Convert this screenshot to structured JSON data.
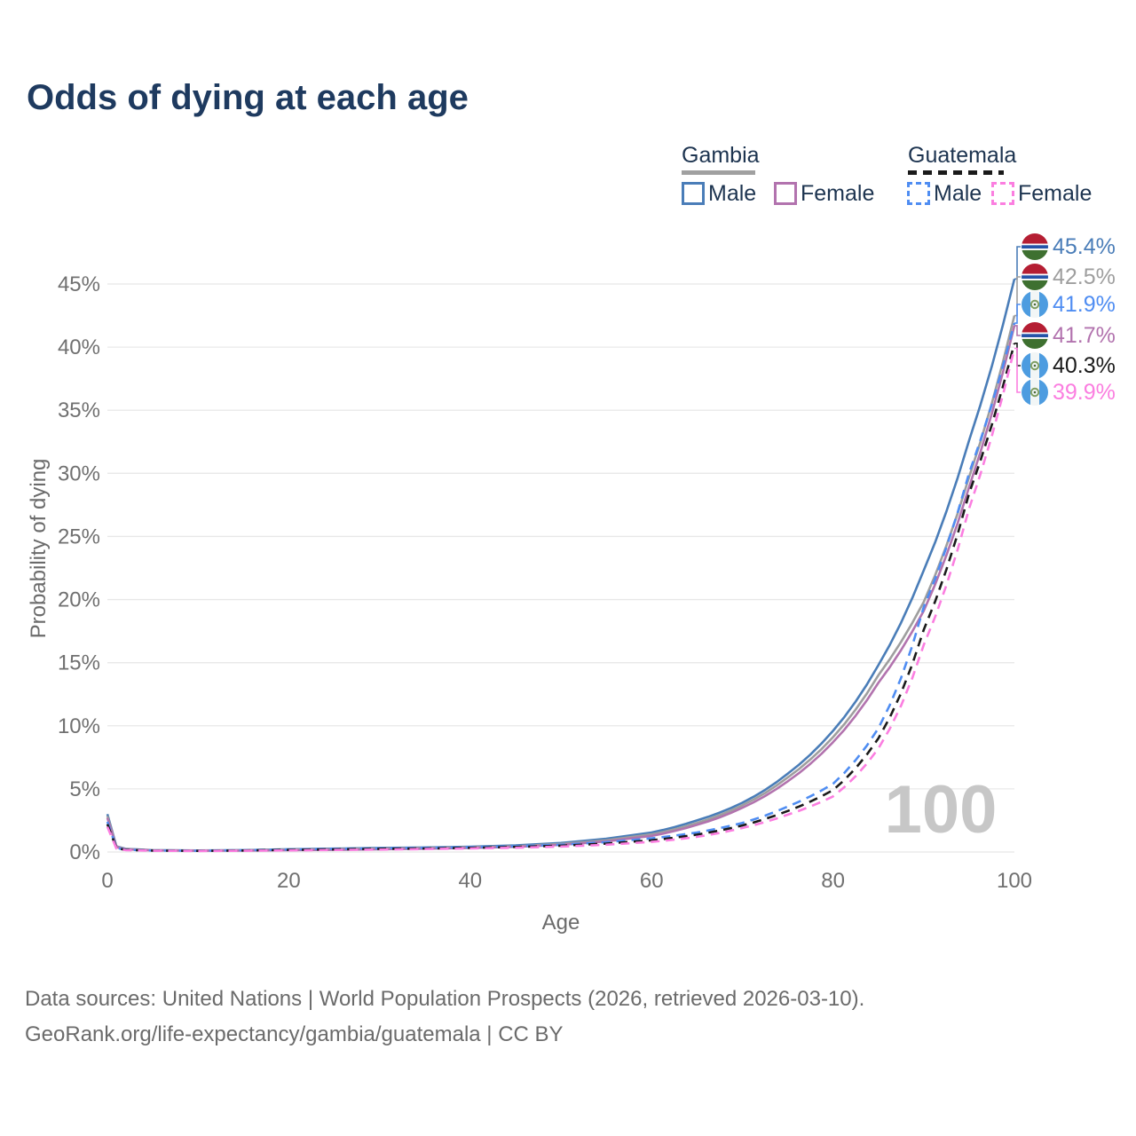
{
  "title": "Odds of dying at each age",
  "legend": {
    "groups": [
      {
        "label": "Gambia",
        "line_style": "solid",
        "underline_color": "#a0a0a0",
        "items": [
          {
            "label": "Male",
            "color": "#4a7db8"
          },
          {
            "label": "Female",
            "color": "#b273ae"
          }
        ]
      },
      {
        "label": "Guatemala",
        "line_style": "dashed",
        "underline_color": "#1a1a1a",
        "items": [
          {
            "label": "Male",
            "color": "#4f8df2"
          },
          {
            "label": "Female",
            "color": "#fb7ee0"
          }
        ]
      }
    ]
  },
  "watermark": "100",
  "footer": {
    "line1": "Data sources: United Nations | World Population Prospects (2026, retrieved 2026-03-10).",
    "line2": "GeoRank.org/life-expectancy/gambia/guatemala | CC BY"
  },
  "icons": {
    "gambia_flag": {
      "red": "#b51e33",
      "blue": "#2553a8",
      "green": "#3e7030",
      "white": "#ffffff"
    },
    "guatemala_flag": {
      "blue": "#4d9ce0",
      "white": "#f2f6f6",
      "wreath": "#7f9e63"
    }
  },
  "chart_data": {
    "type": "line",
    "title": "Odds of dying at each age",
    "xlabel": "Age",
    "ylabel": "Probability of dying",
    "xlim": [
      0,
      100
    ],
    "ylim": [
      0,
      47
    ],
    "x_ticks": [
      0,
      20,
      40,
      60,
      80,
      100
    ],
    "y_ticks": [
      0,
      5,
      10,
      15,
      20,
      25,
      30,
      35,
      40,
      45
    ],
    "y_tick_suffix": "%",
    "grid": "horizontal",
    "legend_position": "top-right",
    "ages": [
      0,
      1,
      2,
      5,
      10,
      15,
      20,
      25,
      30,
      35,
      40,
      45,
      50,
      55,
      60,
      65,
      70,
      75,
      80,
      85,
      90,
      95,
      100
    ],
    "series": [
      {
        "name": "Gambia Male",
        "country": "Gambia",
        "sex": "Male",
        "color": "#4a7db8",
        "dash": "solid",
        "end_label": "45.4%",
        "values": [
          3.0,
          0.45,
          0.25,
          0.15,
          0.12,
          0.15,
          0.22,
          0.27,
          0.32,
          0.36,
          0.42,
          0.52,
          0.72,
          1.05,
          1.55,
          2.5,
          3.9,
          6.2,
          9.6,
          14.8,
          22.3,
          32.6,
          45.4
        ]
      },
      {
        "name": "Gambia",
        "country": "Gambia",
        "sex": "Both",
        "color": "#9e9e9e",
        "dash": "solid",
        "end_label": "42.5%",
        "values": [
          2.85,
          0.42,
          0.23,
          0.14,
          0.11,
          0.13,
          0.18,
          0.22,
          0.27,
          0.31,
          0.37,
          0.46,
          0.64,
          0.93,
          1.4,
          2.3,
          3.7,
          5.9,
          9.1,
          14.0,
          19.8,
          29.7,
          42.5
        ]
      },
      {
        "name": "Guatemala Male",
        "country": "Guatemala",
        "sex": "Male",
        "color": "#4f8df2",
        "dash": "dashed",
        "end_label": "41.9%",
        "values": [
          2.4,
          0.32,
          0.18,
          0.12,
          0.1,
          0.14,
          0.2,
          0.25,
          0.29,
          0.33,
          0.38,
          0.46,
          0.58,
          0.78,
          1.08,
          1.55,
          2.3,
          3.6,
          5.4,
          9.8,
          19.4,
          30.0,
          41.9
        ]
      },
      {
        "name": "Gambia Female",
        "country": "Gambia",
        "sex": "Female",
        "color": "#b273ae",
        "dash": "solid",
        "end_label": "41.7%",
        "values": [
          2.7,
          0.38,
          0.21,
          0.13,
          0.1,
          0.11,
          0.14,
          0.17,
          0.21,
          0.26,
          0.32,
          0.41,
          0.57,
          0.84,
          1.28,
          2.15,
          3.5,
          5.6,
          8.7,
          13.4,
          19.1,
          28.9,
          41.7
        ]
      },
      {
        "name": "Guatemala",
        "country": "Guatemala",
        "sex": "Both",
        "color": "#1a1a1a",
        "dash": "dashed",
        "end_label": "40.3%",
        "values": [
          2.2,
          0.3,
          0.17,
          0.11,
          0.09,
          0.12,
          0.17,
          0.21,
          0.25,
          0.28,
          0.33,
          0.4,
          0.5,
          0.67,
          0.93,
          1.38,
          2.1,
          3.25,
          4.9,
          9.0,
          17.6,
          28.4,
          40.3
        ]
      },
      {
        "name": "Guatemala Female",
        "country": "Guatemala",
        "sex": "Female",
        "color": "#fb7ee0",
        "dash": "dashed",
        "end_label": "39.9%",
        "values": [
          2.0,
          0.27,
          0.15,
          0.1,
          0.08,
          0.1,
          0.13,
          0.16,
          0.19,
          0.23,
          0.28,
          0.34,
          0.43,
          0.58,
          0.8,
          1.2,
          1.9,
          2.95,
          4.4,
          8.2,
          16.4,
          27.2,
          39.9
        ]
      }
    ]
  }
}
